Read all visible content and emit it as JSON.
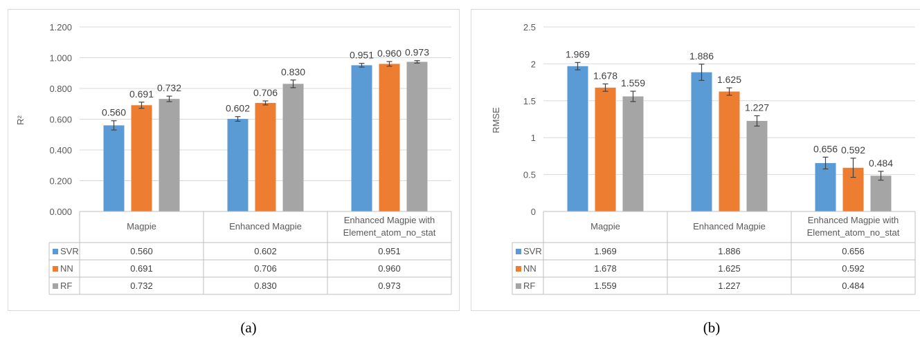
{
  "colors": {
    "SVR": "#5b9bd5",
    "NN": "#ed7d31",
    "RF": "#a5a5a5"
  },
  "chart_data": [
    {
      "type": "bar",
      "caption": "(a)",
      "ylabel": "R²",
      "ylim": [
        0,
        1.2
      ],
      "yticks": [
        "0.000",
        "0.200",
        "0.400",
        "0.600",
        "0.800",
        "1.000",
        "1.200"
      ],
      "categories": [
        "Magpie",
        "Enhanced Magpie",
        "Enhanced Magpie with Element_atom_no_stat"
      ],
      "category_lines": [
        [
          "Magpie"
        ],
        [
          "Enhanced Magpie"
        ],
        [
          "Enhanced Magpie with",
          "Element_atom_no_stat"
        ]
      ],
      "series": [
        {
          "name": "SVR",
          "values": [
            0.56,
            0.602,
            0.951
          ],
          "labels": [
            "0.560",
            "0.602",
            "0.951"
          ],
          "errors": [
            0.03,
            0.015,
            0.012
          ]
        },
        {
          "name": "NN",
          "values": [
            0.691,
            0.706,
            0.96
          ],
          "labels": [
            "0.691",
            "0.706",
            "0.960"
          ],
          "errors": [
            0.02,
            0.013,
            0.015
          ]
        },
        {
          "name": "RF",
          "values": [
            0.732,
            0.83,
            0.973
          ],
          "labels": [
            "0.732",
            "0.830",
            "0.973"
          ],
          "errors": [
            0.018,
            0.025,
            0.008
          ]
        }
      ],
      "grid": true,
      "data_table": true
    },
    {
      "type": "bar",
      "caption": "(b)",
      "ylabel": "RMSE",
      "ylim": [
        0,
        2.5
      ],
      "yticks": [
        "0",
        "0.5",
        "1",
        "1.5",
        "2",
        "2.5"
      ],
      "categories": [
        "Magpie",
        "Enhanced Magpie",
        "Enhanced Magpie with Element_atom_no_stat"
      ],
      "category_lines": [
        [
          "Magpie"
        ],
        [
          "Enhanced Magpie"
        ],
        [
          "Enhanced Magpie with",
          "Element_atom_no_stat"
        ]
      ],
      "series": [
        {
          "name": "SVR",
          "values": [
            1.969,
            1.886,
            0.656
          ],
          "labels": [
            "1.969",
            "1.886",
            "0.656"
          ],
          "errors": [
            0.05,
            0.11,
            0.08
          ]
        },
        {
          "name": "NN",
          "values": [
            1.678,
            1.625,
            0.592
          ],
          "labels": [
            "1.678",
            "1.625",
            "0.592"
          ],
          "errors": [
            0.05,
            0.05,
            0.13
          ]
        },
        {
          "name": "RF",
          "values": [
            1.559,
            1.227,
            0.484
          ],
          "labels": [
            "1.559",
            "1.227",
            "0.484"
          ],
          "errors": [
            0.07,
            0.07,
            0.06
          ]
        }
      ],
      "grid": true,
      "data_table": true
    }
  ]
}
